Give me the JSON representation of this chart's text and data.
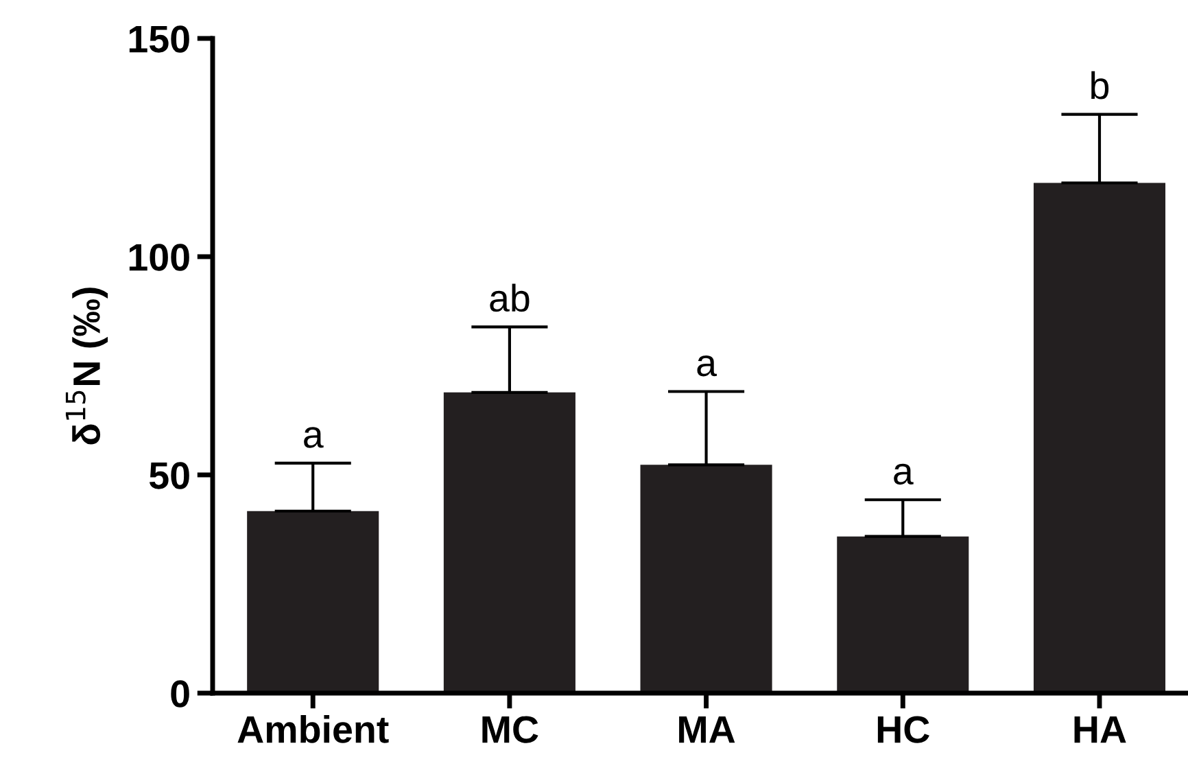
{
  "chart_data": {
    "type": "bar",
    "categories": [
      "Ambient",
      "MC",
      "MA",
      "HC",
      "HA"
    ],
    "values": [
      41.7,
      68.9,
      52.3,
      35.9,
      116.9
    ],
    "errors": [
      [
        41.7,
        52.7
      ],
      [
        68.9,
        83.9
      ],
      [
        52.3,
        69.1
      ],
      [
        35.9,
        44.3
      ],
      [
        116.9,
        132.6
      ]
    ],
    "color": "#231f20",
    "ylabel": "δ$^{15}$N (‰)",
    "ylim": [
      0,
      150
    ],
    "yticks": [
      0,
      50,
      100,
      150
    ],
    "annotations": [
      {
        "text": "a",
        "x": "Ambient",
        "y": 52.7
      },
      {
        "text": "ab",
        "x": "MC",
        "y": 83.9
      },
      {
        "text": "a",
        "x": "MA",
        "y": 69.1
      },
      {
        "text": "a",
        "x": "HC",
        "y": 44.3
      },
      {
        "text": "b",
        "x": "HA",
        "y": 132.6
      }
    ],
    "grid": false
  }
}
